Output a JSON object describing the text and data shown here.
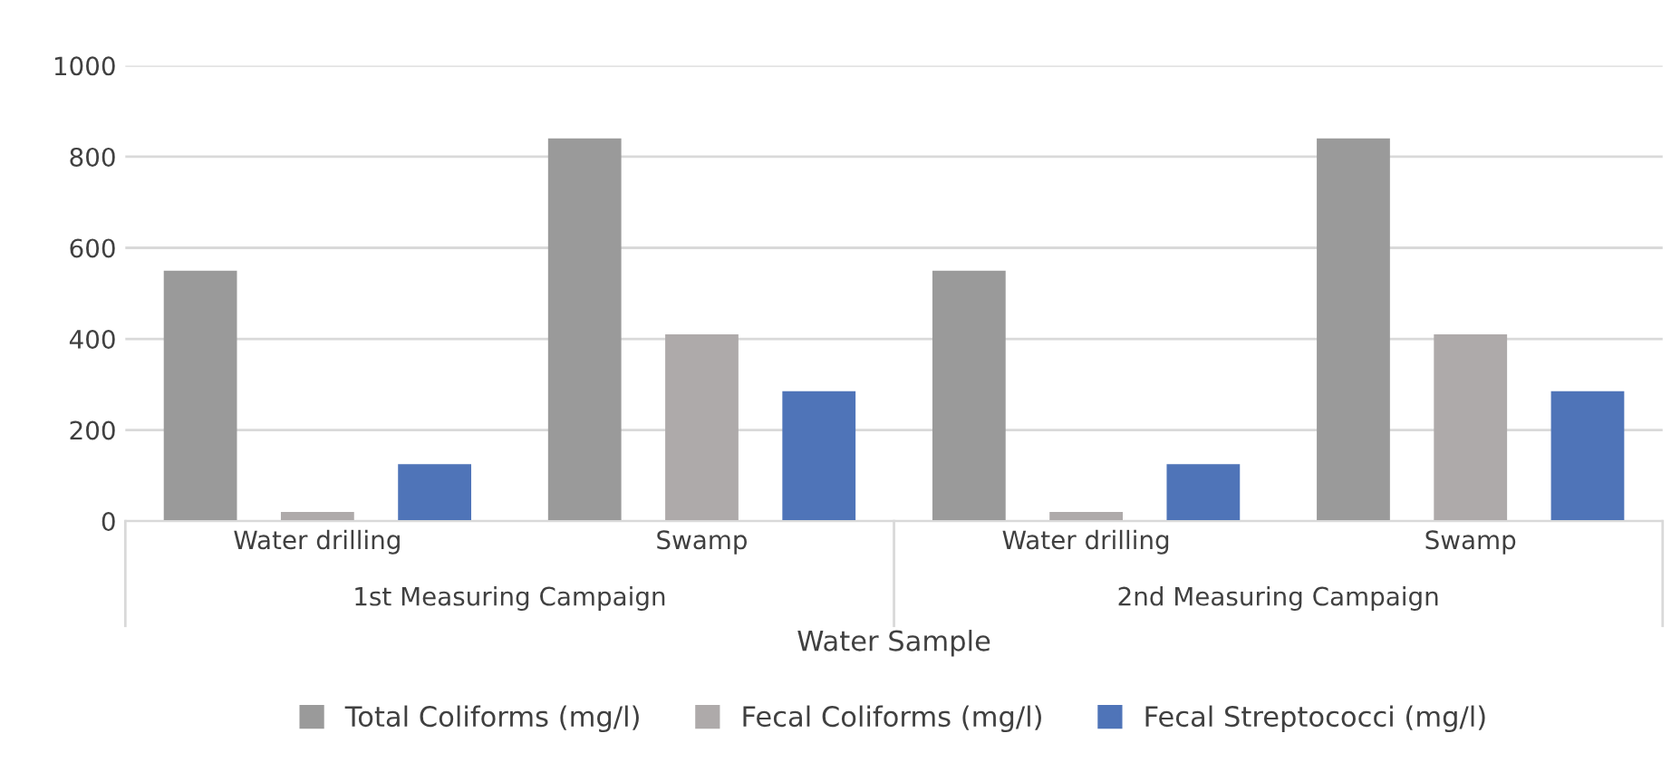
{
  "chart_data": {
    "type": "bar",
    "xlabel": "Water Sample",
    "categories": [
      "Water drilling",
      "Swamp",
      "Water drilling",
      "Swamp"
    ],
    "series": [
      {
        "name": "Total Coliforms (mg/l)",
        "color": "#9a9a9a",
        "values": [
          550,
          840,
          550,
          840
        ]
      },
      {
        "name": "Fecal Coliforms (mg/l)",
        "color": "#aeaaaa",
        "values": [
          20,
          410,
          20,
          410
        ]
      },
      {
        "name": "Fecal Streptococci (mg/l)",
        "color": "#4f74b8",
        "values": [
          125,
          285,
          125,
          285
        ]
      }
    ],
    "annotations": [
      "1st Measuring Campaign",
      "2nd Measuring Campaign"
    ],
    "ylim": [
      0,
      1000
    ],
    "yticks": [
      0,
      200,
      400,
      600,
      800,
      1000
    ],
    "grid": "y",
    "legend": "bottom"
  }
}
